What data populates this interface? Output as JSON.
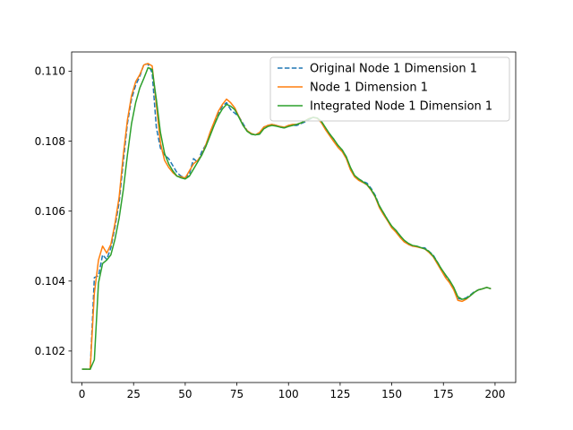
{
  "chart_data": {
    "type": "line",
    "title": "",
    "xlabel": "",
    "ylabel": "",
    "xlim": [
      -5,
      210
    ],
    "ylim": [
      0.1011,
      0.11055
    ],
    "xticks": [
      0,
      25,
      50,
      75,
      100,
      125,
      150,
      175,
      200
    ],
    "xtick_labels": [
      "0",
      "25",
      "50",
      "75",
      "100",
      "125",
      "150",
      "175",
      "200"
    ],
    "yticks": [
      0.102,
      0.104,
      0.106,
      0.108,
      0.11
    ],
    "ytick_labels": [
      "0.102",
      "0.104",
      "0.106",
      "0.108",
      "0.110"
    ],
    "legend_position": "top-right",
    "grid": false,
    "series": [
      {
        "name": "Original Node 1 Dimension 1",
        "color": "#1f77b4",
        "style": "dashed",
        "x": [
          0,
          4,
          6,
          8,
          10,
          12,
          14,
          16,
          18,
          20,
          22,
          24,
          26,
          28,
          30,
          32,
          34,
          36,
          38,
          40,
          42,
          44,
          46,
          48,
          50,
          52,
          54,
          56,
          58,
          60,
          62,
          64,
          66,
          68,
          70,
          72,
          74,
          76,
          78,
          80,
          82,
          84,
          86,
          88,
          90,
          92,
          94,
          96,
          98,
          100,
          102,
          104,
          106,
          108,
          110,
          112,
          114,
          116,
          118,
          120,
          122,
          124,
          126,
          128,
          130,
          132,
          134,
          136,
          138,
          140,
          142,
          144,
          146,
          148,
          150,
          152,
          154,
          156,
          158,
          160,
          162,
          164,
          166,
          168,
          170,
          172,
          174,
          176,
          178,
          180,
          182,
          184,
          186,
          188,
          190,
          192,
          194,
          196,
          198
        ],
        "y": [
          0.10148,
          0.10148,
          0.1041,
          0.10415,
          0.10475,
          0.10462,
          0.10495,
          0.10555,
          0.10625,
          0.1074,
          0.1085,
          0.1092,
          0.1096,
          0.10985,
          0.1102,
          0.1102,
          0.10995,
          0.1084,
          0.1078,
          0.1076,
          0.1075,
          0.1073,
          0.1071,
          0.107,
          0.10695,
          0.10705,
          0.1075,
          0.1074,
          0.1077,
          0.1079,
          0.1082,
          0.1085,
          0.1088,
          0.109,
          0.1091,
          0.1089,
          0.1088,
          0.1087,
          0.1085,
          0.1083,
          0.1082,
          0.10818,
          0.1082,
          0.1084,
          0.10845,
          0.10848,
          0.10845,
          0.1084,
          0.10838,
          0.10845,
          0.10845,
          0.10845,
          0.1085,
          0.10855,
          0.10862,
          0.10868,
          0.10865,
          0.10855,
          0.10835,
          0.1082,
          0.10805,
          0.10785,
          0.10775,
          0.10755,
          0.1072,
          0.107,
          0.10692,
          0.10685,
          0.1068,
          0.10665,
          0.10645,
          0.10615,
          0.10595,
          0.10575,
          0.10555,
          0.10545,
          0.1053,
          0.10515,
          0.10505,
          0.105,
          0.105,
          0.10495,
          0.10495,
          0.10485,
          0.10475,
          0.10455,
          0.10435,
          0.10415,
          0.104,
          0.1038,
          0.1035,
          0.10348,
          0.10352,
          0.1036,
          0.1037,
          0.10375,
          0.10378,
          0.10382,
          0.10378
        ]
      },
      {
        "name": "Node 1 Dimension 1",
        "color": "#ff7f0e",
        "style": "solid",
        "x": [
          0,
          4,
          6,
          8,
          10,
          12,
          14,
          16,
          18,
          20,
          22,
          24,
          26,
          28,
          30,
          32,
          34,
          36,
          38,
          40,
          42,
          44,
          46,
          48,
          50,
          52,
          54,
          56,
          58,
          60,
          62,
          64,
          66,
          68,
          70,
          72,
          74,
          76,
          78,
          80,
          82,
          84,
          86,
          88,
          90,
          92,
          94,
          96,
          98,
          100,
          102,
          104,
          106,
          108,
          110,
          112,
          114,
          116,
          118,
          120,
          122,
          124,
          126,
          128,
          130,
          132,
          134,
          136,
          138,
          140,
          142,
          144,
          146,
          148,
          150,
          152,
          154,
          156,
          158,
          160,
          162,
          164,
          166,
          168,
          170,
          172,
          174,
          176,
          178,
          180,
          182,
          184,
          186,
          188,
          190,
          192,
          194,
          196,
          198
        ],
        "y": [
          0.10148,
          0.10148,
          0.10365,
          0.1046,
          0.105,
          0.1048,
          0.10505,
          0.10565,
          0.1064,
          0.1076,
          0.1086,
          0.1093,
          0.1097,
          0.1099,
          0.11018,
          0.11022,
          0.11015,
          0.10905,
          0.10795,
          0.10745,
          0.10725,
          0.1071,
          0.107,
          0.10698,
          0.10695,
          0.10715,
          0.10735,
          0.10745,
          0.1076,
          0.1079,
          0.10825,
          0.10855,
          0.10885,
          0.10905,
          0.1092,
          0.1091,
          0.10895,
          0.1087,
          0.10845,
          0.1083,
          0.10822,
          0.10818,
          0.10825,
          0.1084,
          0.10845,
          0.10848,
          0.10845,
          0.10842,
          0.1084,
          0.10845,
          0.10848,
          0.10848,
          0.10852,
          0.10858,
          0.10865,
          0.10868,
          0.10865,
          0.10852,
          0.10832,
          0.10815,
          0.10798,
          0.10782,
          0.1077,
          0.1075,
          0.10718,
          0.10698,
          0.10688,
          0.10682,
          0.10675,
          0.1066,
          0.1064,
          0.1061,
          0.1059,
          0.10572,
          0.10552,
          0.1054,
          0.10525,
          0.10512,
          0.10505,
          0.105,
          0.10498,
          0.10495,
          0.10492,
          0.10482,
          0.1047,
          0.1045,
          0.1043,
          0.1041,
          0.10395,
          0.10375,
          0.10345,
          0.10342,
          0.10348,
          0.10358,
          0.10368,
          0.10375,
          0.10378,
          0.10382,
          0.10378
        ]
      },
      {
        "name": "Integrated Node 1 Dimension 1",
        "color": "#2ca02c",
        "style": "solid",
        "x": [
          0,
          4,
          6,
          8,
          10,
          12,
          14,
          16,
          18,
          20,
          22,
          24,
          26,
          28,
          30,
          32,
          34,
          36,
          38,
          40,
          42,
          44,
          46,
          48,
          50,
          52,
          54,
          56,
          58,
          60,
          62,
          64,
          66,
          68,
          70,
          72,
          74,
          76,
          78,
          80,
          82,
          84,
          86,
          88,
          90,
          92,
          94,
          96,
          98,
          100,
          102,
          104,
          106,
          108,
          110,
          112,
          114,
          116,
          118,
          120,
          122,
          124,
          126,
          128,
          130,
          132,
          134,
          136,
          138,
          140,
          142,
          144,
          146,
          148,
          150,
          152,
          154,
          156,
          158,
          160,
          162,
          164,
          166,
          168,
          170,
          172,
          174,
          176,
          178,
          180,
          182,
          184,
          186,
          188,
          190,
          192,
          194,
          196,
          198
        ],
        "y": [
          0.10148,
          0.10148,
          0.10175,
          0.10395,
          0.1045,
          0.1046,
          0.10475,
          0.1052,
          0.1058,
          0.1066,
          0.1076,
          0.1085,
          0.1091,
          0.10952,
          0.1098,
          0.1101,
          0.11005,
          0.1092,
          0.10825,
          0.10765,
          0.10735,
          0.10715,
          0.107,
          0.10695,
          0.10692,
          0.107,
          0.1072,
          0.1074,
          0.1076,
          0.10785,
          0.10815,
          0.10845,
          0.10872,
          0.10892,
          0.10905,
          0.109,
          0.1089,
          0.10868,
          0.10845,
          0.10828,
          0.1082,
          0.10818,
          0.1082,
          0.10835,
          0.10842,
          0.10845,
          0.10843,
          0.1084,
          0.10838,
          0.10842,
          0.10845,
          0.10848,
          0.10852,
          0.10858,
          0.10864,
          0.10868,
          0.10866,
          0.10856,
          0.10838,
          0.1082,
          0.10805,
          0.10788,
          0.10775,
          0.10755,
          0.10725,
          0.10702,
          0.10692,
          0.10684,
          0.10676,
          0.10662,
          0.10642,
          0.10615,
          0.10595,
          0.10575,
          0.10557,
          0.10545,
          0.1053,
          0.10517,
          0.10508,
          0.10502,
          0.105,
          0.10496,
          0.10492,
          0.10485,
          0.10472,
          0.10455,
          0.10435,
          0.10418,
          0.10402,
          0.10382,
          0.10355,
          0.10348,
          0.1035,
          0.10358,
          0.10368,
          0.10375,
          0.10378,
          0.10382,
          0.10378
        ]
      }
    ]
  }
}
